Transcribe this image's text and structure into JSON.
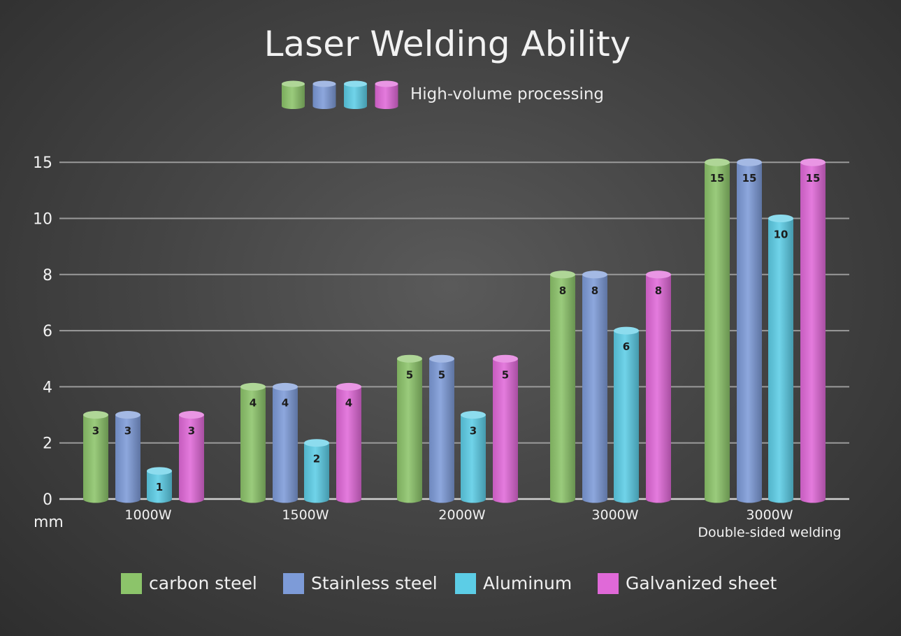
{
  "chart_data": {
    "type": "bar",
    "title": "Laser Welding Ability",
    "subtitle": "High-volume processing",
    "ylabel": "mm",
    "ylim": [
      0,
      15
    ],
    "yticks": [
      0,
      2,
      4,
      6,
      8,
      10,
      15
    ],
    "categories": [
      "1000W",
      "1500W",
      "2000W",
      "3000W",
      "3000W\nDouble-sided welding"
    ],
    "grid": true,
    "legend_position": "bottom",
    "series": [
      {
        "name": "carbon steel",
        "color": "#8cc46a",
        "values": [
          3,
          4,
          5,
          8,
          15
        ]
      },
      {
        "name": "Stainless steel",
        "color": "#7d9bd8",
        "values": [
          3,
          4,
          5,
          8,
          15
        ]
      },
      {
        "name": "Aluminum",
        "color": "#5ccde6",
        "values": [
          1,
          2,
          3,
          6,
          10
        ]
      },
      {
        "name": "Galvanized sheet",
        "color": "#e069d8",
        "values": [
          3,
          4,
          5,
          8,
          15
        ]
      }
    ]
  }
}
